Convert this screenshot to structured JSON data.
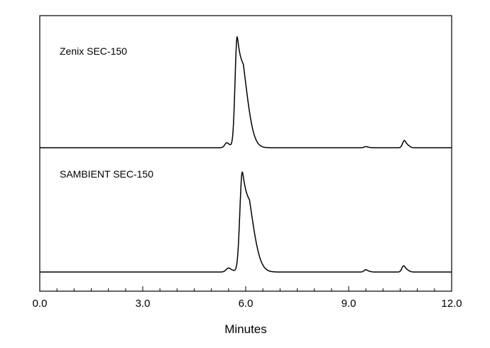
{
  "chart_data": {
    "type": "line",
    "xlabel": "Minutes",
    "xlim": [
      0,
      12
    ],
    "x_ticks": [
      "0.0",
      "3.0",
      "6.0",
      "9.0",
      "12.0"
    ],
    "x_tick_values": [
      0,
      3,
      6,
      9,
      12
    ],
    "y_axis": "none",
    "grid": false,
    "series": [
      {
        "name": "Zenix SEC-150",
        "baseline": 0.0,
        "peaks": [
          {
            "rt": 5.45,
            "height": 0.045,
            "width": 0.06,
            "tail": 0.05
          },
          {
            "rt": 5.75,
            "height": 1.0,
            "width": 0.06,
            "tail": 0.18
          },
          {
            "rt": 9.5,
            "height": 0.01,
            "width": 0.05,
            "tail": 0.03
          },
          {
            "rt": 10.62,
            "height": 0.065,
            "width": 0.05,
            "tail": 0.04
          }
        ]
      },
      {
        "name": "SAMBIENT SEC-150",
        "baseline": 0.0,
        "peaks": [
          {
            "rt": 5.5,
            "height": 0.035,
            "width": 0.07,
            "tail": 0.05
          },
          {
            "rt": 5.9,
            "height": 0.88,
            "width": 0.07,
            "tail": 0.19
          },
          {
            "rt": 9.5,
            "height": 0.02,
            "width": 0.05,
            "tail": 0.03
          },
          {
            "rt": 10.6,
            "height": 0.055,
            "width": 0.05,
            "tail": 0.04
          }
        ]
      }
    ]
  }
}
